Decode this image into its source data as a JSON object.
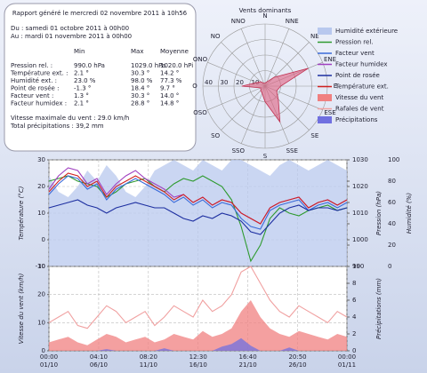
{
  "report": {
    "title": "Rapport généré le mercredi 02 novembre 2011 à 10h56",
    "from": "Du : samedi 01 octobre 2011 à 00h00",
    "to": "Au : mardi 01 novembre 2011 à 00h00",
    "columns": [
      "Min",
      "Max",
      "Moyenne"
    ],
    "rows": [
      [
        "Pression rel. :",
        "990.0 hPa",
        "1029.0 hPa",
        "1020.0 hPi"
      ],
      [
        "Température ext. :",
        "2.1 °",
        "30.3 °",
        "14.2 °"
      ],
      [
        "Humidité ext. :",
        "23.0 %",
        "98.0 %",
        "77.3 %"
      ],
      [
        "Point de rosée :",
        "-1.3 °",
        "18.4 °",
        "9.7 °"
      ],
      [
        "Facteur vent :",
        "1.3 °",
        "30.3 °",
        "14.0 °"
      ],
      [
        "Facteur humidex :",
        "2.1 °",
        "28.8 °",
        "14.8 °"
      ]
    ],
    "max_wind": "Vitesse maximale du vent : 29.0 km/h",
    "total_rain": "Total précipitations : 39,2 mm"
  },
  "chart_data": [
    {
      "type": "radar",
      "title": "Vents dominants",
      "categories": [
        "N",
        "NNE",
        "NE",
        "ENE",
        "E",
        "ESE",
        "SE",
        "SSE",
        "S",
        "SSO",
        "SO",
        "OSO",
        "O",
        "ONO",
        "NO",
        "NNO"
      ],
      "rlim": [
        0,
        40
      ],
      "rticks": [
        10,
        20,
        30,
        40
      ],
      "series": [
        {
          "color": "#e06080",
          "values": [
            2,
            3,
            8,
            30,
            10,
            8,
            12,
            25,
            10,
            5,
            4,
            3,
            15,
            6,
            4,
            2
          ]
        }
      ]
    },
    {
      "type": "line",
      "x": [
        0,
        1,
        2,
        3,
        4,
        5,
        6,
        7,
        8,
        9,
        10,
        11,
        12,
        13,
        14,
        15,
        16,
        17,
        18,
        19,
        20,
        21,
        22,
        23,
        24,
        25,
        26,
        27,
        28,
        29,
        30,
        31
      ],
      "xlim": [
        0,
        31
      ],
      "ylim": [
        -10,
        30
      ],
      "yticks": [
        -10,
        0,
        10,
        20,
        30
      ],
      "ylabel": "Température (°C)",
      "y2lim": [
        990,
        1030
      ],
      "y2ticks": [
        990,
        1000,
        1010,
        1020,
        1030
      ],
      "y2label": "Pression (hPa)",
      "y3lim": [
        0,
        100
      ],
      "y3ticks": [
        0,
        20,
        40,
        60,
        80,
        100
      ],
      "y3label": "Humidité (%)",
      "grid": true,
      "series": [
        {
          "name": "Humidité extérieure",
          "style": "area",
          "axis": "y3",
          "color": "#b8c8ee",
          "values": [
            85,
            70,
            65,
            75,
            90,
            80,
            95,
            85,
            70,
            65,
            75,
            90,
            95,
            100,
            95,
            90,
            100,
            95,
            90,
            100,
            100,
            95,
            90,
            85,
            95,
            100,
            95,
            90,
            95,
            100,
            95,
            90
          ]
        },
        {
          "name": "Pression rel.",
          "axis": "y2",
          "color": "#2e9a2e",
          "values": [
            1022,
            1023,
            1024,
            1022,
            1021,
            1020,
            1016,
            1018,
            1021,
            1022,
            1023,
            1020,
            1018,
            1021,
            1023,
            1022,
            1024,
            1022,
            1020,
            1015,
            1005,
            992,
            998,
            1008,
            1012,
            1010,
            1009,
            1011,
            1012,
            1013,
            1011,
            1012
          ]
        },
        {
          "name": "Facteur vent",
          "color": "#3a6ad8",
          "values": [
            17,
            21,
            24,
            23,
            19,
            21,
            15,
            19,
            21,
            23,
            21,
            19,
            17,
            14,
            16,
            13,
            15,
            12,
            14,
            13,
            8,
            5,
            4,
            11,
            13,
            14,
            15,
            11,
            13,
            14,
            12,
            14
          ]
        },
        {
          "name": "Facteur humidex",
          "color": "#a040c0",
          "values": [
            19,
            24,
            27,
            26,
            21,
            23,
            17,
            21,
            24,
            26,
            23,
            21,
            19,
            16,
            17,
            14,
            16,
            13,
            15,
            14,
            10,
            8,
            6,
            12,
            14,
            15,
            16,
            12,
            14,
            15,
            13,
            15
          ]
        },
        {
          "name": "Point de rosée",
          "color": "#1c2ea0",
          "values": [
            12,
            13,
            14,
            15,
            13,
            12,
            10,
            12,
            13,
            14,
            13,
            12,
            12,
            10,
            8,
            7,
            9,
            8,
            10,
            9,
            7,
            3,
            2,
            6,
            10,
            12,
            13,
            11,
            12,
            12,
            11,
            12
          ]
        },
        {
          "name": "Température ext.",
          "color": "#d02020",
          "values": [
            18,
            22,
            25,
            24,
            20,
            22,
            16,
            20,
            22,
            24,
            22,
            20,
            18,
            15,
            17,
            14,
            16,
            13,
            15,
            14,
            10,
            8,
            6,
            12,
            14,
            15,
            16,
            12,
            14,
            15,
            13,
            15
          ]
        }
      ]
    },
    {
      "type": "line",
      "x": [
        0,
        1,
        2,
        3,
        4,
        5,
        6,
        7,
        8,
        9,
        10,
        11,
        12,
        13,
        14,
        15,
        16,
        17,
        18,
        19,
        20,
        21,
        22,
        23,
        24,
        25,
        26,
        27,
        28,
        29,
        30,
        31
      ],
      "xlim": [
        0,
        31
      ],
      "xticks": [
        {
          "value": 0,
          "label": [
            "00:00",
            "01/10"
          ]
        },
        {
          "value": 5.174,
          "label": [
            "04:10",
            "06/10"
          ]
        },
        {
          "value": 10.347,
          "label": [
            "08:20",
            "11/10"
          ]
        },
        {
          "value": 15.521,
          "label": [
            "12:30",
            "16/10"
          ]
        },
        {
          "value": 20.694,
          "label": [
            "16:40",
            "21/10"
          ]
        },
        {
          "value": 25.868,
          "label": [
            "20:50",
            "26/10"
          ]
        },
        {
          "value": 31,
          "label": [
            "00:00",
            "01/11"
          ]
        }
      ],
      "ylim": [
        0,
        30
      ],
      "yticks": [
        0,
        10,
        20,
        30
      ],
      "ylabel": "Vitesse du vent (km/h)",
      "y2lim": [
        0,
        10
      ],
      "y2ticks": [
        0,
        2,
        4,
        6,
        8,
        10
      ],
      "y2label": "Précipitations (mm)",
      "grid": true,
      "series": [
        {
          "name": "Vitesse du vent",
          "style": "area",
          "color": "#f08080",
          "values": [
            3,
            4,
            5,
            3,
            2,
            4,
            6,
            5,
            3,
            4,
            5,
            3,
            4,
            6,
            5,
            4,
            7,
            5,
            6,
            8,
            14,
            18,
            12,
            8,
            6,
            5,
            7,
            6,
            5,
            4,
            6,
            5
          ]
        },
        {
          "name": "Rafales de vent",
          "color": "#f0a0a0",
          "values": [
            10,
            12,
            14,
            9,
            8,
            12,
            16,
            14,
            10,
            12,
            14,
            9,
            12,
            16,
            14,
            12,
            18,
            14,
            16,
            20,
            28,
            30,
            24,
            18,
            14,
            12,
            16,
            14,
            12,
            10,
            14,
            12
          ]
        },
        {
          "name": "Précipitations",
          "style": "area",
          "axis": "y2",
          "color": "#7070e0",
          "values": [
            0,
            0,
            0,
            0,
            0,
            0,
            0.2,
            0,
            0,
            0,
            0,
            0,
            0.3,
            0,
            0,
            0,
            0,
            0,
            0.5,
            0.8,
            1.5,
            0.6,
            0,
            0,
            0,
            0.4,
            0,
            0,
            0,
            0,
            0,
            0
          ]
        }
      ]
    }
  ]
}
